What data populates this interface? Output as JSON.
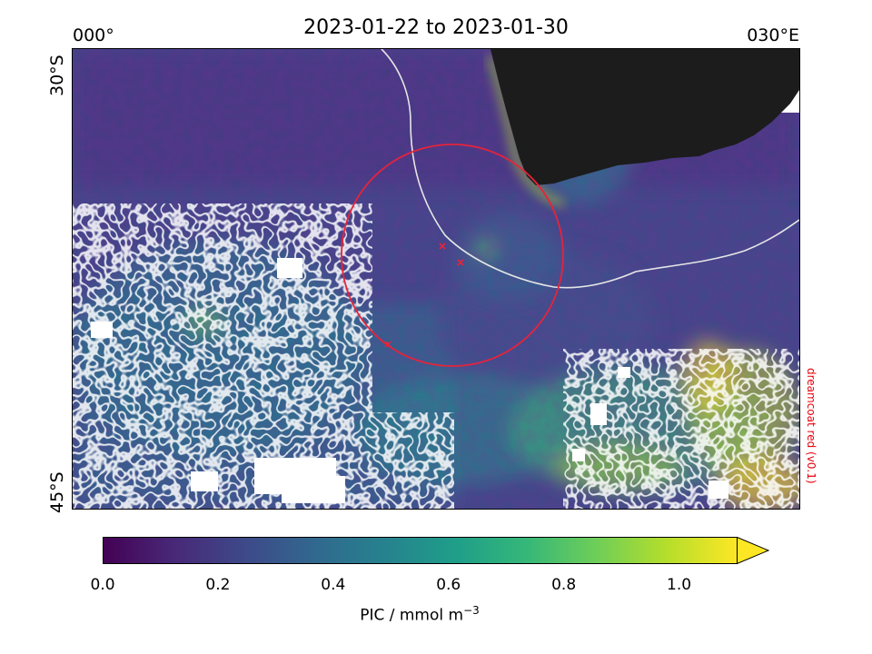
{
  "title": "2023-01-22 to 2023-01-30",
  "axes": {
    "lon_left": "000°",
    "lon_right": "030°E",
    "lat_top": "30°S",
    "lat_bottom": "45°S"
  },
  "credit": "dreamcoat red (v0.1)",
  "colorbar": {
    "label_main": "PIC / mmol m",
    "label_sup": "−3",
    "ticks": [
      "0.0",
      "0.2",
      "0.4",
      "0.6",
      "0.8",
      "1.0"
    ],
    "tick_values": [
      0.0,
      0.2,
      0.4,
      0.6,
      0.8,
      1.0
    ],
    "vmin": 0.0,
    "vmax": 1.1,
    "extend": "max",
    "colormap": [
      "#440154",
      "#482878",
      "#3e4989",
      "#31688e",
      "#26828e",
      "#1f9e89",
      "#35b779",
      "#6ece58",
      "#b5de2b",
      "#fde725"
    ]
  },
  "colors": {
    "land": "#1c1c1c",
    "cloud_mask": "#ffffff",
    "front_line": "#e6e6e6",
    "circle": "#e8233a",
    "markers": "#e8233a"
  }
}
